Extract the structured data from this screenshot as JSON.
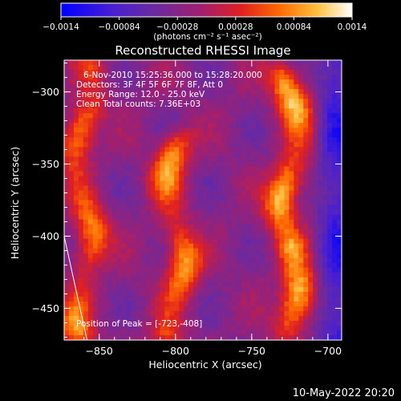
{
  "chart_data": {
    "type": "heatmap",
    "title": "Reconstructed RHESSI Image",
    "xlabel": "Heliocentric X (arcsec)",
    "ylabel": "Heliocentric Y (arcsec)",
    "xlim": [
      -873,
      -691
    ],
    "ylim": [
      -472,
      -278
    ],
    "x_ticks": [
      -850,
      -800,
      -750,
      -700
    ],
    "y_ticks": [
      -300,
      -350,
      -400,
      -450
    ],
    "colorbar": {
      "range": [
        -0.0014,
        0.0014
      ],
      "tick_labels": [
        "-0.0014",
        "-0.00084",
        "-0.00028",
        "0.00028",
        "0.00084",
        "0.0014"
      ],
      "unit_label": "(photons cm⁻² s⁻¹ asec⁻²)",
      "colors": [
        "#0000ff",
        "#6020c0",
        "#6a2aa0",
        "#b02060",
        "#e83010",
        "#ff8a00",
        "#ffe080",
        "#ffffff"
      ]
    },
    "info_lines": [
      "6-Nov-2010 15:25:36.000 to 15:28:20.000",
      "Detectors: 3F 4F 5F 6F 7F 8F, Att 0",
      "Energy Range: 12.0 - 25.0 keV",
      "Clean    Total counts: 7.36E+03"
    ],
    "peak_label": "Position of Peak = [-723,-408]",
    "peak": [
      -723,
      -408
    ],
    "bright_structures": [
      {
        "x_center": -860,
        "y_range": [
          -465,
          -285
        ],
        "peak_value": 0.0011
      },
      {
        "x_center": -800,
        "y_range": [
          -465,
          -335
        ],
        "peak_value": 0.0012
      },
      {
        "x_center": -725,
        "y_range": [
          -465,
          -290
        ],
        "peak_value": 0.0014
      }
    ],
    "limb_line": {
      "x": [
        -873,
        -858
      ],
      "y": [
        -400,
        -472
      ]
    }
  },
  "footer": {
    "timestamp": "10-May-2022 20:20"
  }
}
